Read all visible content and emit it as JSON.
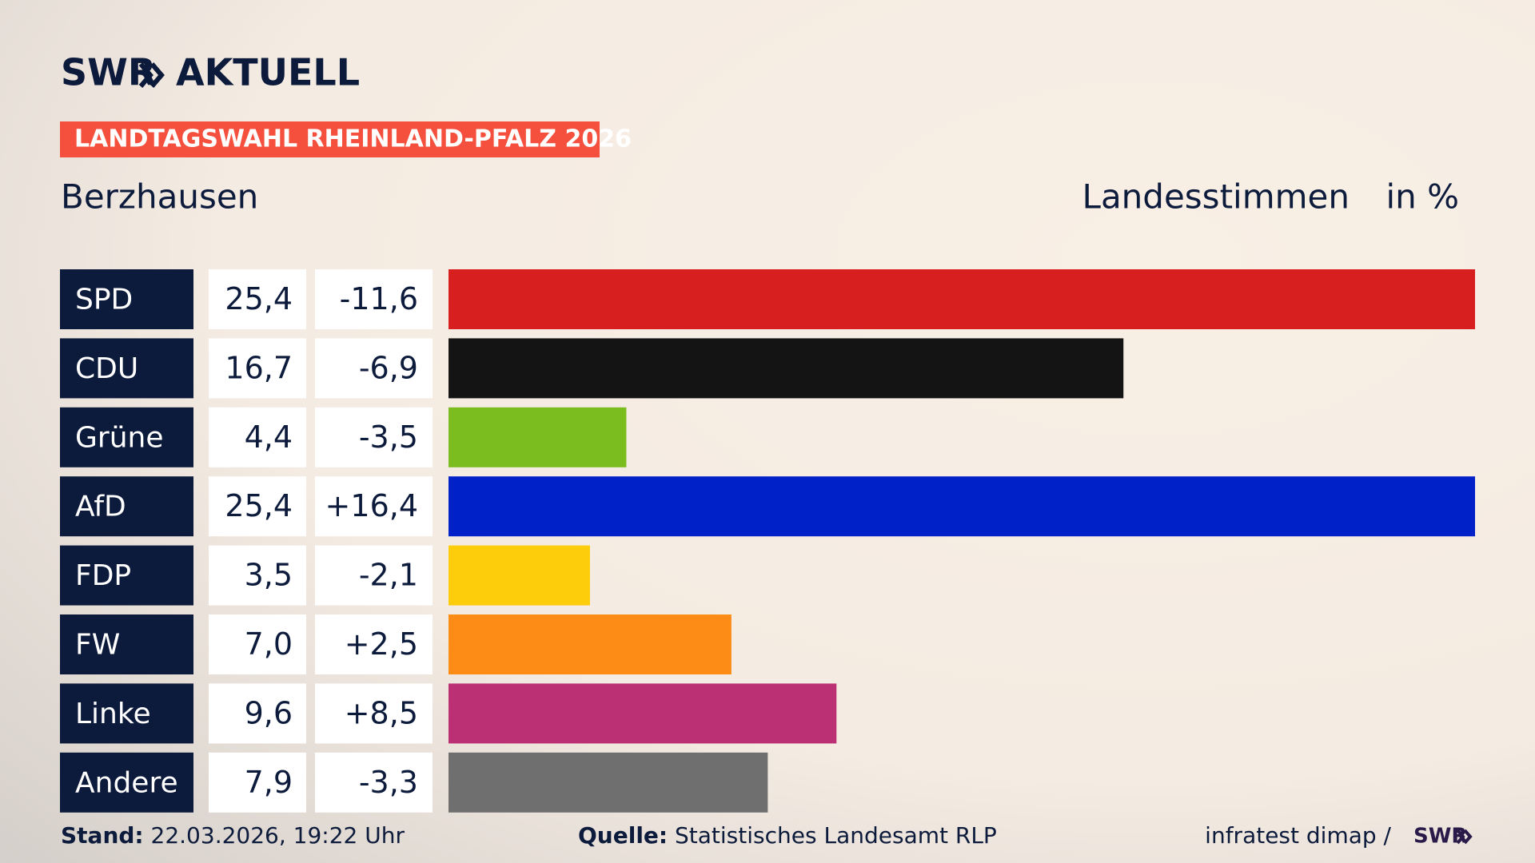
{
  "header": {
    "brand": "SWR",
    "brand_suffix": "AKTUELL"
  },
  "chart_data": {
    "type": "bar",
    "orientation": "horizontal",
    "title": "LANDTAGSWAHL RHEINLAND-PFALZ 2026",
    "subtitle": "Berzhausen",
    "measure": "Landesstimmen",
    "unit": "in %",
    "categories": [
      "SPD",
      "CDU",
      "Grüne",
      "AfD",
      "FDP",
      "FW",
      "Linke",
      "Andere"
    ],
    "values": [
      25.4,
      16.7,
      4.4,
      25.4,
      3.5,
      7.0,
      9.6,
      7.9
    ],
    "value_labels": [
      "25,4",
      "16,7",
      "4,4",
      "25,4",
      "3,5",
      "7,0",
      "9,6",
      "7,9"
    ],
    "changes": {
      "values": [
        -11.6,
        -6.9,
        -3.5,
        16.4,
        -2.1,
        2.5,
        8.5,
        -3.3
      ],
      "value_labels": [
        "-11,6",
        "-6,9",
        "-3,5",
        "+16,4",
        "-2,1",
        "+2,5",
        "+8,5",
        "-3,3"
      ]
    },
    "colors": [
      "#d81f1f",
      "#141414",
      "#7bbd1e",
      "#0020c8",
      "#fdcc0a",
      "#fd8c16",
      "#bb2f74",
      "#6f6f70"
    ]
  },
  "footer": {
    "date_label": "Stand:",
    "date": "22.03.2026, 19:22 Uhr",
    "source_label": "Quelle:",
    "source": "Statistisches Landesamt RLP",
    "credit": "infratest dimap /",
    "credit_brand": "SWR"
  }
}
